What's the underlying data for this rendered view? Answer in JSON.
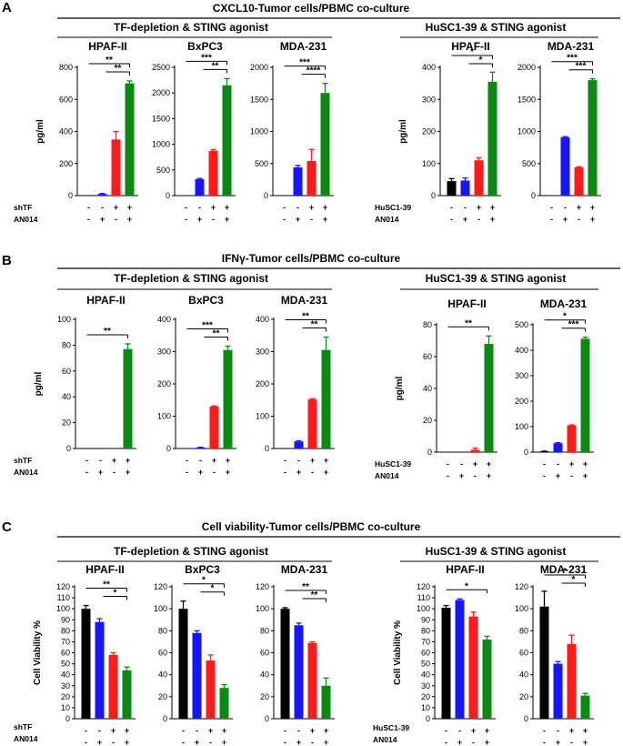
{
  "colors": {
    "black": "#000000",
    "blue": "#1515ff",
    "red": "#ff1a1a",
    "green": "#0b8a12"
  },
  "sections": [
    {
      "letter": "A",
      "title": "CXCL10-Tumor cells/PBMC co-culture",
      "groups": [
        {
          "title": "TF-depletion & STING agonist",
          "row_labels": [
            "shTF",
            "AN014"
          ]
        },
        {
          "title": "HuSC1-39 & STING agonist",
          "row_labels": [
            "HuSC1-39",
            "AN014"
          ]
        }
      ]
    },
    {
      "letter": "B",
      "title": "IFNγ-Tumor cells/PBMC co-culture",
      "groups": [
        {
          "title": "TF-depletion & STING agonist",
          "row_labels": [
            "shTF",
            "AN014"
          ]
        },
        {
          "title": "HuSC1-39 & STING agonist",
          "row_labels": [
            "HuSC1-39",
            "AN014"
          ]
        }
      ]
    },
    {
      "letter": "C",
      "title": "Cell viability-Tumor cells/PBMC co-culture",
      "groups": [
        {
          "title": "TF-depletion & STING agonist",
          "row_labels": [
            "shTF",
            "AN014"
          ]
        },
        {
          "title": "HuSC1-39 & STING agonist",
          "row_labels": [
            "HuSC1-39",
            "AN014"
          ]
        }
      ]
    }
  ],
  "chart_data": [
    {
      "type": "bar",
      "section": "A",
      "group": "TF-depletion & STING agonist",
      "title": "HPAF-II",
      "ylabel": "pg/ml",
      "ylim": [
        0,
        800
      ],
      "yticks": [
        0,
        200,
        400,
        600,
        800
      ],
      "categories": [
        "- -",
        "- +",
        "+ -",
        "+ +"
      ],
      "values": [
        0,
        10,
        350,
        700
      ],
      "errors": [
        0,
        3,
        50,
        15
      ],
      "treatment_rows": [
        [
          "-",
          "-",
          "+",
          "+"
        ],
        [
          "-",
          "+",
          "-",
          "+"
        ]
      ],
      "bar_colors": [
        "black",
        "blue",
        "red",
        "green"
      ],
      "significance": [
        "**",
        "**"
      ]
    },
    {
      "type": "bar",
      "section": "A",
      "group": "TF-depletion & STING agonist",
      "title": "BxPC3",
      "ylabel": "",
      "ylim": [
        0,
        2500
      ],
      "yticks": [
        0,
        500,
        1000,
        1500,
        2000,
        2500
      ],
      "categories": [
        "- -",
        "- +",
        "+ -",
        "+ +"
      ],
      "values": [
        0,
        320,
        870,
        2150
      ],
      "errors": [
        0,
        15,
        25,
        130
      ],
      "treatment_rows": [
        [
          "-",
          "-",
          "+",
          "+"
        ],
        [
          "-",
          "+",
          "-",
          "+"
        ]
      ],
      "bar_colors": [
        "black",
        "blue",
        "red",
        "green"
      ],
      "significance": [
        "***",
        "**"
      ]
    },
    {
      "type": "bar",
      "section": "A",
      "group": "TF-depletion & STING agonist",
      "title": "MDA-231",
      "ylabel": "",
      "ylim": [
        0,
        2000
      ],
      "yticks": [
        0,
        500,
        1000,
        1500,
        2000
      ],
      "categories": [
        "- -",
        "- +",
        "+ -",
        "+ +"
      ],
      "values": [
        0,
        440,
        540,
        1600
      ],
      "errors": [
        0,
        30,
        180,
        150
      ],
      "treatment_rows": [
        [
          "-",
          "-",
          "+",
          "+"
        ],
        [
          "-",
          "+",
          "-",
          "+"
        ]
      ],
      "bar_colors": [
        "black",
        "blue",
        "red",
        "green"
      ],
      "significance": [
        "***",
        "****"
      ]
    },
    {
      "type": "bar",
      "section": "A",
      "group": "HuSC1-39 & STING agonist",
      "title": "HPAF-II",
      "ylabel": "pg/ml",
      "ylim": [
        0,
        400
      ],
      "yticks": [
        0,
        100,
        200,
        300,
        400
      ],
      "categories": [
        "- -",
        "- +",
        "+ -",
        "+ +"
      ],
      "values": [
        45,
        47,
        110,
        355
      ],
      "errors": [
        8,
        8,
        8,
        30
      ],
      "treatment_rows": [
        [
          "-",
          "-",
          "+",
          "+"
        ],
        [
          "-",
          "+",
          "-",
          "+"
        ]
      ],
      "bar_colors": [
        "black",
        "blue",
        "red",
        "green"
      ],
      "significance": [
        "*",
        "*"
      ]
    },
    {
      "type": "bar",
      "section": "A",
      "group": "HuSC1-39 & STING agonist",
      "title": "MDA-231",
      "ylabel": "",
      "ylim": [
        0,
        2000
      ],
      "yticks": [
        0,
        500,
        1000,
        1500,
        2000
      ],
      "categories": [
        "- -",
        "- +",
        "+ -",
        "+ +"
      ],
      "values": [
        0,
        910,
        440,
        1800
      ],
      "errors": [
        0,
        10,
        10,
        20
      ],
      "treatment_rows": [
        [
          "-",
          "-",
          "+",
          "+"
        ],
        [
          "-",
          "+",
          "-",
          "+"
        ]
      ],
      "bar_colors": [
        "black",
        "blue",
        "red",
        "green"
      ],
      "significance": [
        "***",
        "***"
      ]
    },
    {
      "type": "bar",
      "section": "B",
      "group": "TF-depletion & STING agonist",
      "title": "HPAF-II",
      "ylabel": "pg/ml",
      "ylim": [
        0,
        100
      ],
      "yticks": [
        0,
        20,
        40,
        60,
        80,
        100
      ],
      "categories": [
        "- -",
        "- +",
        "+ -",
        "+ +"
      ],
      "values": [
        0,
        0,
        0,
        77
      ],
      "errors": [
        0,
        0,
        0,
        4
      ],
      "treatment_rows": [
        [
          "-",
          "-",
          "+",
          "+"
        ],
        [
          "-",
          "+",
          "-",
          "+"
        ]
      ],
      "bar_colors": [
        "black",
        "blue",
        "red",
        "green"
      ],
      "significance": [
        "**"
      ]
    },
    {
      "type": "bar",
      "section": "B",
      "group": "TF-depletion & STING agonist",
      "title": "BxPC3",
      "ylabel": "",
      "ylim": [
        0,
        400
      ],
      "yticks": [
        0,
        100,
        200,
        300,
        400
      ],
      "categories": [
        "- -",
        "- +",
        "+ -",
        "+ +"
      ],
      "values": [
        0,
        3,
        130,
        305
      ],
      "errors": [
        0,
        1,
        2,
        12
      ],
      "treatment_rows": [
        [
          "-",
          "-",
          "+",
          "+"
        ],
        [
          "-",
          "+",
          "-",
          "+"
        ]
      ],
      "bar_colors": [
        "black",
        "blue",
        "red",
        "green"
      ],
      "significance": [
        "***",
        "**"
      ]
    },
    {
      "type": "bar",
      "section": "B",
      "group": "TF-depletion & STING agonist",
      "title": "MDA-231",
      "ylabel": "",
      "ylim": [
        0,
        400
      ],
      "yticks": [
        0,
        100,
        200,
        300,
        400
      ],
      "categories": [
        "- -",
        "- +",
        "+ -",
        "+ +"
      ],
      "values": [
        0,
        22,
        152,
        305
      ],
      "errors": [
        0,
        2,
        2,
        40
      ],
      "treatment_rows": [
        [
          "-",
          "-",
          "+",
          "+"
        ],
        [
          "-",
          "+",
          "-",
          "+"
        ]
      ],
      "bar_colors": [
        "black",
        "blue",
        "red",
        "green"
      ],
      "significance": [
        "**",
        "**"
      ]
    },
    {
      "type": "bar",
      "section": "B",
      "group": "HuSC1-39 & STING agonist",
      "title": "HPAF-II",
      "ylabel": "pg/ml",
      "ylim": [
        0,
        80
      ],
      "yticks": [
        0,
        20,
        40,
        60,
        80
      ],
      "categories": [
        "- -",
        "- +",
        "+ -",
        "+ +"
      ],
      "values": [
        0,
        0,
        1.5,
        68
      ],
      "errors": [
        0,
        0,
        1,
        5
      ],
      "treatment_rows": [
        [
          "-",
          "-",
          "+",
          "+"
        ],
        [
          "-",
          "+",
          "-",
          "+"
        ]
      ],
      "bar_colors": [
        "black",
        "blue",
        "red",
        "green"
      ],
      "significance": [
        "**"
      ]
    },
    {
      "type": "bar",
      "section": "B",
      "group": "HuSC1-39 & STING agonist",
      "title": "MDA-231",
      "ylabel": "",
      "ylim": [
        0,
        500
      ],
      "yticks": [
        0,
        100,
        200,
        300,
        400,
        500
      ],
      "categories": [
        "- -",
        "- +",
        "+ -",
        "+ +"
      ],
      "values": [
        3,
        35,
        105,
        445
      ],
      "errors": [
        1,
        2,
        2,
        6
      ],
      "treatment_rows": [
        [
          "-",
          "-",
          "+",
          "+"
        ],
        [
          "-",
          "+",
          "-",
          "+"
        ]
      ],
      "bar_colors": [
        "black",
        "blue",
        "red",
        "green"
      ],
      "significance": [
        "*",
        "***"
      ]
    },
    {
      "type": "bar",
      "section": "C",
      "group": "TF-depletion & STING agonist",
      "title": "HPAF-II",
      "ylabel": "Cell Viability %",
      "ylim": [
        0,
        120
      ],
      "yticks": [
        0,
        10,
        20,
        30,
        40,
        50,
        60,
        70,
        80,
        90,
        100,
        110,
        120
      ],
      "categories": [
        "- -",
        "- +",
        "+ -",
        "+ +"
      ],
      "values": [
        100,
        88,
        58,
        44
      ],
      "errors": [
        3,
        3,
        2,
        3
      ],
      "treatment_rows": [
        [
          "-",
          "-",
          "+",
          "+"
        ],
        [
          "-",
          "+",
          "-",
          "+"
        ]
      ],
      "bar_colors": [
        "black",
        "blue",
        "red",
        "green"
      ],
      "significance": [
        "**",
        "*"
      ]
    },
    {
      "type": "bar",
      "section": "C",
      "group": "TF-depletion & STING agonist",
      "title": "BxPC3",
      "ylabel": "",
      "ylim": [
        0,
        120
      ],
      "yticks": [
        0,
        20,
        40,
        60,
        80,
        100,
        120
      ],
      "categories": [
        "- -",
        "- +",
        "+ -",
        "+ +"
      ],
      "values": [
        100,
        78,
        53,
        28
      ],
      "errors": [
        7,
        2,
        5,
        3
      ],
      "treatment_rows": [
        [
          "-",
          "-",
          "+",
          "+"
        ],
        [
          "-",
          "+",
          "-",
          "+"
        ]
      ],
      "bar_colors": [
        "black",
        "blue",
        "red",
        "green"
      ],
      "significance": [
        "*",
        "*"
      ]
    },
    {
      "type": "bar",
      "section": "C",
      "group": "TF-depletion & STING agonist",
      "title": "MDA-231",
      "ylabel": "",
      "ylim": [
        0,
        120
      ],
      "yticks": [
        0,
        20,
        40,
        60,
        80,
        100,
        120
      ],
      "categories": [
        "- -",
        "- +",
        "+ -",
        "+ +"
      ],
      "values": [
        100,
        85,
        69,
        30
      ],
      "errors": [
        1,
        2,
        1,
        7
      ],
      "treatment_rows": [
        [
          "-",
          "-",
          "+",
          "+"
        ],
        [
          "-",
          "+",
          "-",
          "+"
        ]
      ],
      "bar_colors": [
        "black",
        "blue",
        "red",
        "green"
      ],
      "significance": [
        "**",
        "**"
      ]
    },
    {
      "type": "bar",
      "section": "C",
      "group": "HuSC1-39 & STING agonist",
      "title": "HPAF-II",
      "ylabel": "Cell Viability %",
      "ylim": [
        0,
        120
      ],
      "yticks": [
        0,
        10,
        20,
        30,
        40,
        50,
        60,
        70,
        80,
        90,
        100,
        110,
        120
      ],
      "categories": [
        "- -",
        "- +",
        "+ -",
        "+ +"
      ],
      "values": [
        101,
        108,
        93,
        72
      ],
      "errors": [
        2,
        1,
        4,
        3
      ],
      "treatment_rows": [
        [
          "-",
          "-",
          "+",
          "+"
        ],
        [
          "-",
          "+",
          "-",
          "+"
        ]
      ],
      "bar_colors": [
        "black",
        "blue",
        "red",
        "green"
      ],
      "significance": [
        "*"
      ]
    },
    {
      "type": "bar",
      "section": "C",
      "group": "HuSC1-39 & STING agonist",
      "title": "MDA-231",
      "ylabel": "",
      "ylim": [
        0,
        120
      ],
      "yticks": [
        0,
        20,
        40,
        60,
        80,
        100,
        120
      ],
      "categories": [
        "- -",
        "- +",
        "+ -",
        "+ +"
      ],
      "values": [
        102,
        50,
        68,
        21
      ],
      "errors": [
        14,
        2,
        8,
        2
      ],
      "treatment_rows": [
        [
          "-",
          "-",
          "+",
          "+"
        ],
        [
          "-",
          "+",
          "-",
          "+"
        ]
      ],
      "bar_colors": [
        "black",
        "blue",
        "red",
        "green"
      ],
      "significance": [
        "*",
        "*"
      ]
    }
  ]
}
